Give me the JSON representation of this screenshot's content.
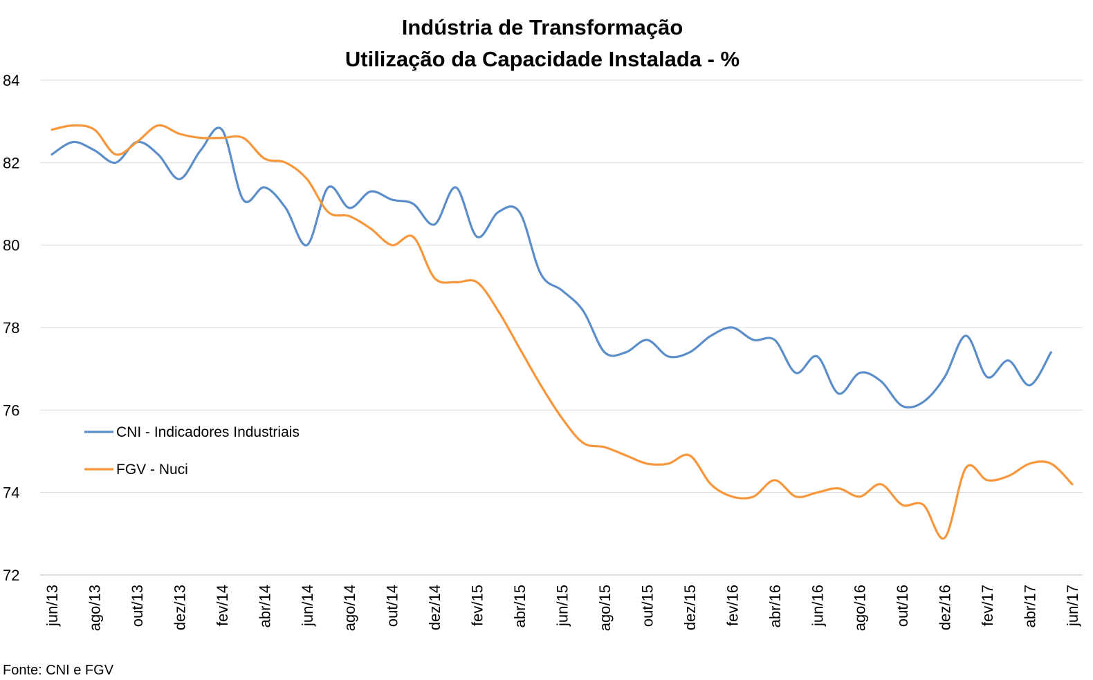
{
  "chart_data": {
    "type": "line",
    "title": [
      "Indústria de Transformação",
      "Utilização da Capacidade Instalada - %"
    ],
    "xlabel": "",
    "ylabel": "",
    "ylim": [
      72,
      84
    ],
    "yticks": [
      "72",
      "74",
      "76",
      "78",
      "80",
      "82",
      "84"
    ],
    "grid": true,
    "legend_position": "left",
    "x": [
      "jun/13",
      "jul/13",
      "ago/13",
      "set/13",
      "out/13",
      "nov/13",
      "dez/13",
      "jan/14",
      "fev/14",
      "mar/14",
      "abr/14",
      "mai/14",
      "jun/14",
      "jul/14",
      "ago/14",
      "set/14",
      "out/14",
      "nov/14",
      "dez/14",
      "jan/15",
      "fev/15",
      "mar/15",
      "abr/15",
      "mai/15",
      "jun/15",
      "jul/15",
      "ago/15",
      "set/15",
      "out/15",
      "nov/15",
      "dez/15",
      "jan/16",
      "fev/16",
      "mar/16",
      "abr/16",
      "mai/16",
      "jun/16",
      "jul/16",
      "ago/16",
      "set/16",
      "out/16",
      "nov/16",
      "dez/16",
      "jan/17",
      "fev/17",
      "mar/17",
      "abr/17",
      "mai/17",
      "jun/17"
    ],
    "xtick_labels": [
      "jun/13",
      "ago/13",
      "out/13",
      "dez/13",
      "fev/14",
      "abr/14",
      "jun/14",
      "ago/14",
      "out/14",
      "dez/14",
      "fev/15",
      "abr/15",
      "jun/15",
      "ago/15",
      "out/15",
      "dez/15",
      "fev/16",
      "abr/16",
      "jun/16",
      "ago/16",
      "out/16",
      "dez/16",
      "fev/17",
      "abr/17",
      "jun/17"
    ],
    "series": [
      {
        "name": "CNI - Indicadores Industriais",
        "color": "#5b8ec9",
        "values": [
          82.2,
          82.5,
          82.3,
          82.0,
          82.5,
          82.2,
          81.6,
          82.3,
          82.8,
          81.1,
          81.4,
          80.9,
          80.0,
          81.4,
          80.9,
          81.3,
          81.1,
          81.0,
          80.5,
          81.4,
          80.2,
          80.8,
          80.8,
          79.3,
          78.9,
          78.4,
          77.4,
          77.4,
          77.7,
          77.3,
          77.4,
          77.8,
          78.0,
          77.7,
          77.7,
          76.9,
          77.3,
          76.4,
          76.9,
          76.7,
          76.1,
          76.2,
          76.8,
          77.8,
          76.8,
          77.2,
          76.6,
          77.4,
          null
        ]
      },
      {
        "name": "FGV - Nuci",
        "color": "#f7963b",
        "values": [
          82.8,
          82.9,
          82.8,
          82.2,
          82.5,
          82.9,
          82.7,
          82.6,
          82.6,
          82.6,
          82.1,
          82.0,
          81.6,
          80.8,
          80.7,
          80.4,
          80.0,
          80.2,
          79.2,
          79.1,
          79.1,
          78.4,
          77.5,
          76.6,
          75.8,
          75.2,
          75.1,
          74.9,
          74.7,
          74.7,
          74.9,
          74.2,
          73.9,
          73.9,
          74.3,
          73.9,
          74.0,
          74.1,
          73.9,
          74.2,
          73.7,
          73.7,
          72.9,
          74.6,
          74.3,
          74.4,
          74.7,
          74.7,
          74.2
        ]
      }
    ],
    "source": "Fonte: CNI e FGV"
  }
}
